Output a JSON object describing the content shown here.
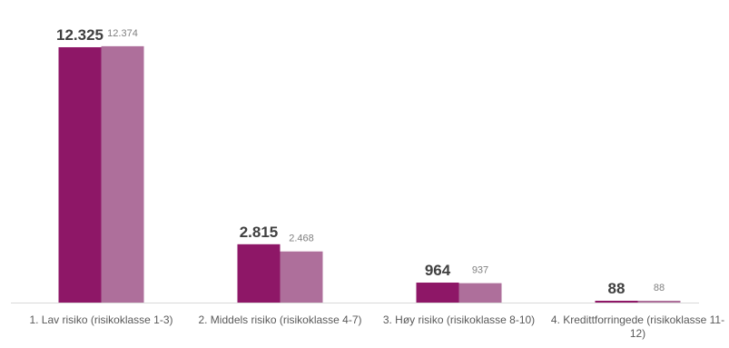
{
  "chart_data": {
    "type": "bar",
    "categories": [
      "1. Lav risiko (risikoklasse 1-3)",
      "2. Middels risiko (risikoklasse 4-7)",
      "3. Høy risiko (risikoklasse 8-10)",
      "4. Kredittforringede (risikoklasse 11-12)"
    ],
    "series": [
      {
        "values": [
          12325,
          2815,
          964,
          88
        ],
        "labels": [
          "12.325",
          "2.815",
          "964",
          "88"
        ],
        "color": "#8e1767"
      },
      {
        "values": [
          12374,
          2468,
          937,
          88
        ],
        "labels": [
          "12.374",
          "2.468",
          "937",
          "88"
        ],
        "color": "#ae6f9b"
      }
    ],
    "ylim": [
      0,
      12500
    ],
    "grid": false,
    "legend": "none"
  }
}
